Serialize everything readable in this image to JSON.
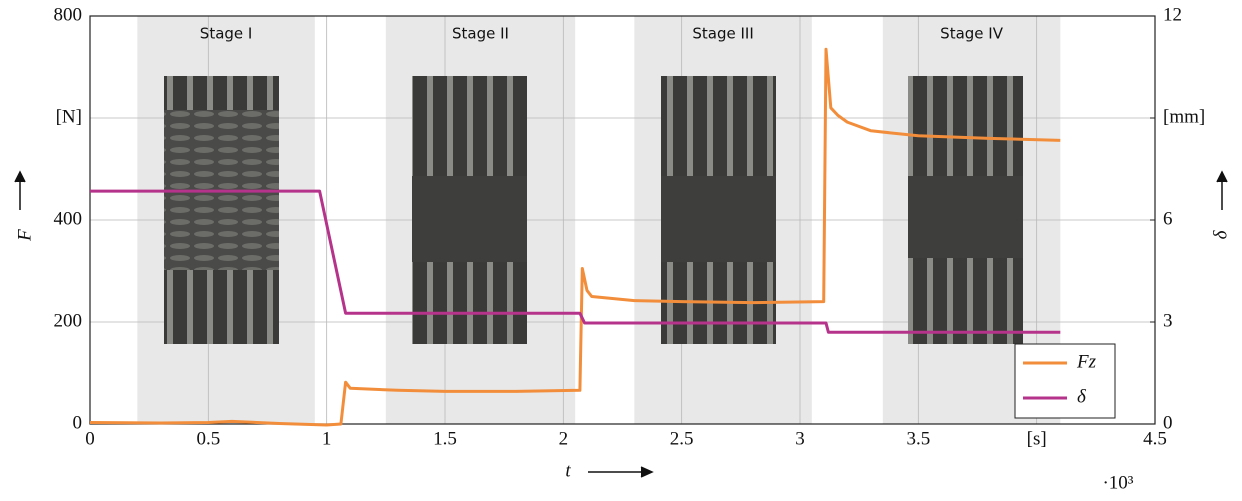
{
  "chart_data": {
    "type": "line",
    "xlabel": "t",
    "ylabel": "F",
    "y2label": "δ",
    "x_multiplier": "·10³",
    "xlim": [
      0,
      4.5
    ],
    "xticks": [
      0,
      0.5,
      1,
      1.5,
      2,
      2.5,
      3,
      3.5,
      {
        "value": 4,
        "label": "[s]"
      },
      4.5
    ],
    "ylim": [
      0,
      800
    ],
    "yticks": [
      0,
      200,
      400,
      {
        "value": 600,
        "label": "[N]"
      },
      800
    ],
    "y2lim": [
      0,
      12
    ],
    "y2ticks": [
      0,
      3,
      6,
      {
        "value": 9,
        "label": "[mm]"
      },
      12
    ],
    "grid": true,
    "legend": "lower right",
    "stages": [
      {
        "label": "Stage I",
        "x": [
          0.2,
          0.95
        ]
      },
      {
        "label": "Stage II",
        "x": [
          1.25,
          2.05
        ]
      },
      {
        "label": "Stage III",
        "x": [
          2.3,
          3.05
        ]
      },
      {
        "label": "Stage IV",
        "x": [
          3.35,
          4.1
        ]
      }
    ],
    "series": [
      {
        "name": "Fz",
        "color": "#f28e3b",
        "x": [
          0,
          0.3,
          0.5,
          0.6,
          0.8,
          1.0,
          1.06,
          1.08,
          1.1,
          1.3,
          1.5,
          1.8,
          2.07,
          2.08,
          2.1,
          2.12,
          2.3,
          2.5,
          2.8,
          3.1,
          3.11,
          3.13,
          3.16,
          3.2,
          3.3,
          3.5,
          3.8,
          4.1
        ],
        "values": [
          3,
          2,
          3,
          5,
          1,
          -2,
          0,
          82,
          70,
          66,
          64,
          64,
          66,
          305,
          262,
          250,
          242,
          240,
          238,
          240,
          735,
          620,
          605,
          592,
          575,
          565,
          560,
          556
        ]
      },
      {
        "name": "δ",
        "color": "#b5338a",
        "axis": "y2",
        "x": [
          0,
          0.97,
          1.08,
          2.07,
          2.09,
          3.11,
          3.12,
          4.1
        ],
        "values": [
          6.85,
          6.85,
          3.26,
          3.26,
          2.97,
          2.97,
          2.7,
          2.7
        ]
      }
    ]
  }
}
